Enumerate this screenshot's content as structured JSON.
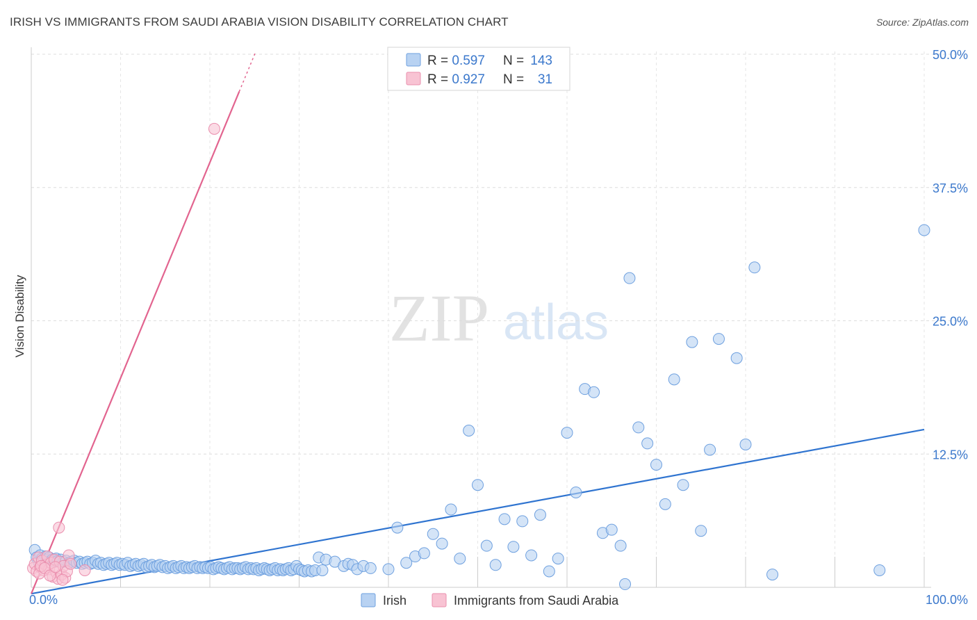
{
  "title": "IRISH VS IMMIGRANTS FROM SAUDI ARABIA VISION DISABILITY CORRELATION CHART",
  "source": "Source: ZipAtlas.com",
  "watermark": {
    "zip": "ZIP",
    "atlas": "atlas"
  },
  "colors": {
    "irish_fill": "#b8d2f2",
    "irish_stroke": "#6ea0df",
    "irish_line": "#2f74d0",
    "saudi_fill": "#f8c3d3",
    "saudi_stroke": "#ea8fae",
    "saudi_line": "#e2648f",
    "value_text": "#3b78cc",
    "grid": "#dddddd"
  },
  "legend": {
    "items": [
      {
        "r_label": "R = ",
        "r_value": "0.597",
        "n_label": "N = ",
        "n_value": "143"
      },
      {
        "r_label": "R = ",
        "r_value": "0.927",
        "n_label": "N = ",
        "n_value": "31"
      }
    ]
  },
  "chart_data": {
    "type": "scatter",
    "title": "IRISH VS IMMIGRANTS FROM SAUDI ARABIA VISION DISABILITY CORRELATION CHART",
    "ylabel": "Vision Disability",
    "xlabel": "",
    "xlim": [
      0,
      100
    ],
    "ylim": [
      0,
      50
    ],
    "x_tick_labels": [
      "0.0%",
      "100.0%"
    ],
    "y_ticks": [
      12.5,
      25,
      37.5,
      50
    ],
    "y_tick_labels": [
      "12.5%",
      "25.0%",
      "37.5%",
      "50.0%"
    ],
    "grid": true,
    "legend_position": "top-center",
    "series": [
      {
        "name": "Irish",
        "r": 0.597,
        "n": 143,
        "trend": {
          "x0": 0,
          "y0": -0.6,
          "x1": 100,
          "y1": 14.8
        },
        "points": [
          [
            0.4,
            3.5
          ],
          [
            0.6,
            2.8
          ],
          [
            0.8,
            2.4
          ],
          [
            1.0,
            3.0
          ],
          [
            1.2,
            2.7
          ],
          [
            1.4,
            2.5
          ],
          [
            1.6,
            2.9
          ],
          [
            1.8,
            2.6
          ],
          [
            2.0,
            2.8
          ],
          [
            2.2,
            2.5
          ],
          [
            2.4,
            2.6
          ],
          [
            2.6,
            2.4
          ],
          [
            2.8,
            2.7
          ],
          [
            3.0,
            2.5
          ],
          [
            3.3,
            2.6
          ],
          [
            3.6,
            2.4
          ],
          [
            3.9,
            2.5
          ],
          [
            4.2,
            2.3
          ],
          [
            4.5,
            2.4
          ],
          [
            4.8,
            2.5
          ],
          [
            5.1,
            2.3
          ],
          [
            5.4,
            2.4
          ],
          [
            5.7,
            2.2
          ],
          [
            6.0,
            2.3
          ],
          [
            6.3,
            2.4
          ],
          [
            6.6,
            2.2
          ],
          [
            6.9,
            2.3
          ],
          [
            7.2,
            2.5
          ],
          [
            7.5,
            2.2
          ],
          [
            7.8,
            2.3
          ],
          [
            8.1,
            2.1
          ],
          [
            8.4,
            2.2
          ],
          [
            8.7,
            2.3
          ],
          [
            9.0,
            2.1
          ],
          [
            9.3,
            2.2
          ],
          [
            9.6,
            2.3
          ],
          [
            9.9,
            2.1
          ],
          [
            10.2,
            2.2
          ],
          [
            10.5,
            2.1
          ],
          [
            10.8,
            2.3
          ],
          [
            11.1,
            2.0
          ],
          [
            11.4,
            2.1
          ],
          [
            11.7,
            2.2
          ],
          [
            12.0,
            2.0
          ],
          [
            12.3,
            2.1
          ],
          [
            12.6,
            2.2
          ],
          [
            12.9,
            1.9
          ],
          [
            13.2,
            2.0
          ],
          [
            13.5,
            2.1
          ],
          [
            13.8,
            1.9
          ],
          [
            14.1,
            2.0
          ],
          [
            14.4,
            2.1
          ],
          [
            14.7,
            1.9
          ],
          [
            15.0,
            2.0
          ],
          [
            15.3,
            1.8
          ],
          [
            15.6,
            1.9
          ],
          [
            15.9,
            2.0
          ],
          [
            16.2,
            1.8
          ],
          [
            16.5,
            1.9
          ],
          [
            16.8,
            2.0
          ],
          [
            17.1,
            1.8
          ],
          [
            17.4,
            1.9
          ],
          [
            17.7,
            1.8
          ],
          [
            18.0,
            1.9
          ],
          [
            18.3,
            2.0
          ],
          [
            18.6,
            1.8
          ],
          [
            18.9,
            1.9
          ],
          [
            19.2,
            1.8
          ],
          [
            19.5,
            1.9
          ],
          [
            19.8,
            1.8
          ],
          [
            20.1,
            1.9
          ],
          [
            20.4,
            1.7
          ],
          [
            20.7,
            1.8
          ],
          [
            21.0,
            1.9
          ],
          [
            21.3,
            1.8
          ],
          [
            21.6,
            1.7
          ],
          [
            21.9,
            1.8
          ],
          [
            22.2,
            1.9
          ],
          [
            22.5,
            1.7
          ],
          [
            22.8,
            1.8
          ],
          [
            23.1,
            1.8
          ],
          [
            23.4,
            1.7
          ],
          [
            23.7,
            1.8
          ],
          [
            24.0,
            1.9
          ],
          [
            24.3,
            1.7
          ],
          [
            24.6,
            1.8
          ],
          [
            24.9,
            1.7
          ],
          [
            25.2,
            1.8
          ],
          [
            25.5,
            1.6
          ],
          [
            25.8,
            1.7
          ],
          [
            26.1,
            1.8
          ],
          [
            26.4,
            1.7
          ],
          [
            26.7,
            1.6
          ],
          [
            27.0,
            1.7
          ],
          [
            27.3,
            1.8
          ],
          [
            27.6,
            1.6
          ],
          [
            27.9,
            1.7
          ],
          [
            28.2,
            1.6
          ],
          [
            28.5,
            1.7
          ],
          [
            28.8,
            1.8
          ],
          [
            29.1,
            1.6
          ],
          [
            29.4,
            1.7
          ],
          [
            29.7,
            2.0
          ],
          [
            30.0,
            1.7
          ],
          [
            30.3,
            1.6
          ],
          [
            30.6,
            1.5
          ],
          [
            31.0,
            1.6
          ],
          [
            31.4,
            1.5
          ],
          [
            31.8,
            1.6
          ],
          [
            32.2,
            2.8
          ],
          [
            32.6,
            1.6
          ],
          [
            33.0,
            2.6
          ],
          [
            34.0,
            2.4
          ],
          [
            35.0,
            2.0
          ],
          [
            35.5,
            2.2
          ],
          [
            36.0,
            2.1
          ],
          [
            36.5,
            1.7
          ],
          [
            37.2,
            2.0
          ],
          [
            38.0,
            1.8
          ],
          [
            40.0,
            1.7
          ],
          [
            41.0,
            5.6
          ],
          [
            42.0,
            2.3
          ],
          [
            43.0,
            2.9
          ],
          [
            44.0,
            3.2
          ],
          [
            45.0,
            5.0
          ],
          [
            46.0,
            4.1
          ],
          [
            47.0,
            7.3
          ],
          [
            48.0,
            2.7
          ],
          [
            49.0,
            14.7
          ],
          [
            50.0,
            9.6
          ],
          [
            51.0,
            3.9
          ],
          [
            52.0,
            2.1
          ],
          [
            53.0,
            6.4
          ],
          [
            54.0,
            3.8
          ],
          [
            55.0,
            6.2
          ],
          [
            56.0,
            3.0
          ],
          [
            57.0,
            6.8
          ],
          [
            58.0,
            1.5
          ],
          [
            59.0,
            2.7
          ],
          [
            60.0,
            14.5
          ],
          [
            61.0,
            8.9
          ],
          [
            62.0,
            18.6
          ],
          [
            63.0,
            18.3
          ],
          [
            64.0,
            5.1
          ],
          [
            65.0,
            5.4
          ],
          [
            66.0,
            3.9
          ],
          [
            66.5,
            0.3
          ],
          [
            67.0,
            29.0
          ],
          [
            68.0,
            15.0
          ],
          [
            69.0,
            13.5
          ],
          [
            70.0,
            11.5
          ],
          [
            71.0,
            7.8
          ],
          [
            72.0,
            19.5
          ],
          [
            73.0,
            9.6
          ],
          [
            74.0,
            23.0
          ],
          [
            75.0,
            5.3
          ],
          [
            76.0,
            12.9
          ],
          [
            77.0,
            23.3
          ],
          [
            79.0,
            21.5
          ],
          [
            80.0,
            13.4
          ],
          [
            81.0,
            30.0
          ],
          [
            83.0,
            1.2
          ],
          [
            95.0,
            1.6
          ],
          [
            100.0,
            33.5
          ]
        ]
      },
      {
        "name": "Immigrants from Saudi Arabia",
        "r": 0.927,
        "n": 31,
        "trend": {
          "x0": 0,
          "y0": -0.6,
          "x1": 27,
          "y1": 54
        },
        "points": [
          [
            0.2,
            1.8
          ],
          [
            0.4,
            2.2
          ],
          [
            0.6,
            1.5
          ],
          [
            0.8,
            2.8
          ],
          [
            1.0,
            1.9
          ],
          [
            1.2,
            2.5
          ],
          [
            1.4,
            1.6
          ],
          [
            1.6,
            2.1
          ],
          [
            1.8,
            2.9
          ],
          [
            2.0,
            1.7
          ],
          [
            2.2,
            2.3
          ],
          [
            2.4,
            1.0
          ],
          [
            2.6,
            2.6
          ],
          [
            2.8,
            1.4
          ],
          [
            3.0,
            0.8
          ],
          [
            3.2,
            2.4
          ],
          [
            3.4,
            1.2
          ],
          [
            3.6,
            2.0
          ],
          [
            3.8,
            0.9
          ],
          [
            4.0,
            1.5
          ],
          [
            4.2,
            3.0
          ],
          [
            4.4,
            2.2
          ],
          [
            0.9,
            1.3
          ],
          [
            1.1,
            2.0
          ],
          [
            1.5,
            1.8
          ],
          [
            2.1,
            1.1
          ],
          [
            2.7,
            1.9
          ],
          [
            3.1,
            5.6
          ],
          [
            3.5,
            0.7
          ],
          [
            6.0,
            1.6
          ],
          [
            20.5,
            43.0
          ]
        ]
      }
    ]
  }
}
